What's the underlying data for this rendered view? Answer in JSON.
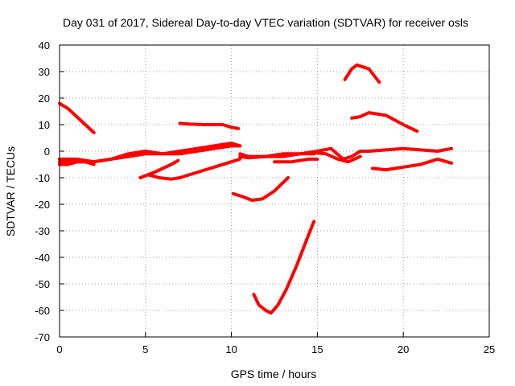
{
  "chart_data": {
    "type": "line",
    "title": "Day 031 of 2017, Sidereal Day-to-day VTEC variation (SDTVAR) for receiver osls",
    "xlabel": "GPS time / hours",
    "ylabel": "SDTVAR / TECUs",
    "xlim": [
      0,
      25
    ],
    "ylim": [
      -70,
      40
    ],
    "xticks": [
      0,
      5,
      10,
      15,
      20,
      25
    ],
    "yticks": [
      40,
      30,
      20,
      10,
      0,
      -10,
      -20,
      -30,
      -40,
      -50,
      -60,
      -70
    ],
    "grid": true,
    "legend": "none",
    "color": "#ff0000",
    "series": [
      {
        "x": [
          0,
          0.5,
          1.0,
          1.5,
          2.0
        ],
        "y": [
          18,
          16,
          13,
          10,
          7
        ]
      },
      {
        "x": [
          0,
          1,
          2,
          3,
          4,
          5,
          6,
          7,
          8,
          9,
          10,
          10.5
        ],
        "y": [
          -3,
          -3,
          -4,
          -3,
          -1,
          0,
          -1,
          -1,
          0,
          1,
          2,
          2
        ]
      },
      {
        "x": [
          0,
          1,
          2,
          3,
          4,
          5,
          6,
          7,
          8,
          9,
          10,
          10.5
        ],
        "y": [
          -4,
          -4,
          -4,
          -3,
          -2,
          -1,
          -1,
          0,
          1,
          2,
          3,
          2
        ]
      },
      {
        "x": [
          0,
          0.5,
          1,
          1.5,
          2
        ],
        "y": [
          -5,
          -5,
          -4,
          -4,
          -5
        ]
      },
      {
        "x": [
          4.7,
          5.5,
          6.5,
          6.9
        ],
        "y": [
          -10,
          -8,
          -5,
          -3.5
        ]
      },
      {
        "x": [
          5.2,
          5.8,
          6.5,
          7.0,
          8.0,
          9.0,
          10.0,
          10.5
        ],
        "y": [
          -9,
          -10,
          -10.5,
          -10,
          -8,
          -6,
          -4,
          -3
        ]
      },
      {
        "x": [
          7.0,
          7.5,
          8.5,
          9.5,
          10.0,
          10.4
        ],
        "y": [
          10.5,
          10.2,
          10,
          10,
          9,
          8.5
        ]
      },
      {
        "x": [
          10.1,
          10.6,
          11.2,
          11.8,
          12.5,
          13.3
        ],
        "y": [
          -16,
          -17,
          -18.5,
          -18,
          -15,
          -10
        ]
      },
      {
        "x": [
          11.3,
          11.6,
          12.0,
          12.3,
          12.7,
          13.2,
          13.8,
          14.4,
          14.8
        ],
        "y": [
          -54,
          -58,
          -60,
          -61,
          -58,
          -52,
          -43,
          -33,
          -26.5
        ]
      },
      {
        "x": [
          10.5,
          11,
          12,
          13,
          14,
          15,
          15.8,
          16.5,
          17.0,
          17.5,
          18,
          19,
          20,
          21,
          22,
          22.8
        ],
        "y": [
          -1,
          -2,
          -2,
          -1,
          -1,
          0,
          1,
          -3,
          -2,
          0,
          0,
          0.5,
          1,
          0.5,
          0,
          1
        ]
      },
      {
        "x": [
          10.5,
          11,
          12,
          13,
          14,
          14.8
        ],
        "y": [
          -2,
          -2.5,
          -2,
          -2,
          -1,
          -1
        ]
      },
      {
        "x": [
          12.5,
          13.5,
          14.5,
          15.0
        ],
        "y": [
          -4,
          -4,
          -3,
          -3
        ]
      },
      {
        "x": [
          16.6,
          17.0,
          17.3,
          18.0,
          18.6
        ],
        "y": [
          27,
          31,
          32.5,
          31,
          26
        ]
      },
      {
        "x": [
          17.0,
          17.5,
          18.0,
          19.0,
          20.0,
          20.8
        ],
        "y": [
          12.5,
          13,
          14.5,
          13.5,
          10,
          7.5
        ]
      },
      {
        "x": [
          18.2,
          19.0,
          20.0,
          21.0,
          21.5,
          22.0,
          22.8
        ],
        "y": [
          -6.5,
          -7,
          -6,
          -5,
          -4,
          -3,
          -4.5
        ]
      },
      {
        "x": [
          14.7,
          15.5,
          16.2,
          16.8,
          17.5
        ],
        "y": [
          -0.5,
          -1,
          -3,
          -4,
          -2
        ]
      }
    ]
  }
}
